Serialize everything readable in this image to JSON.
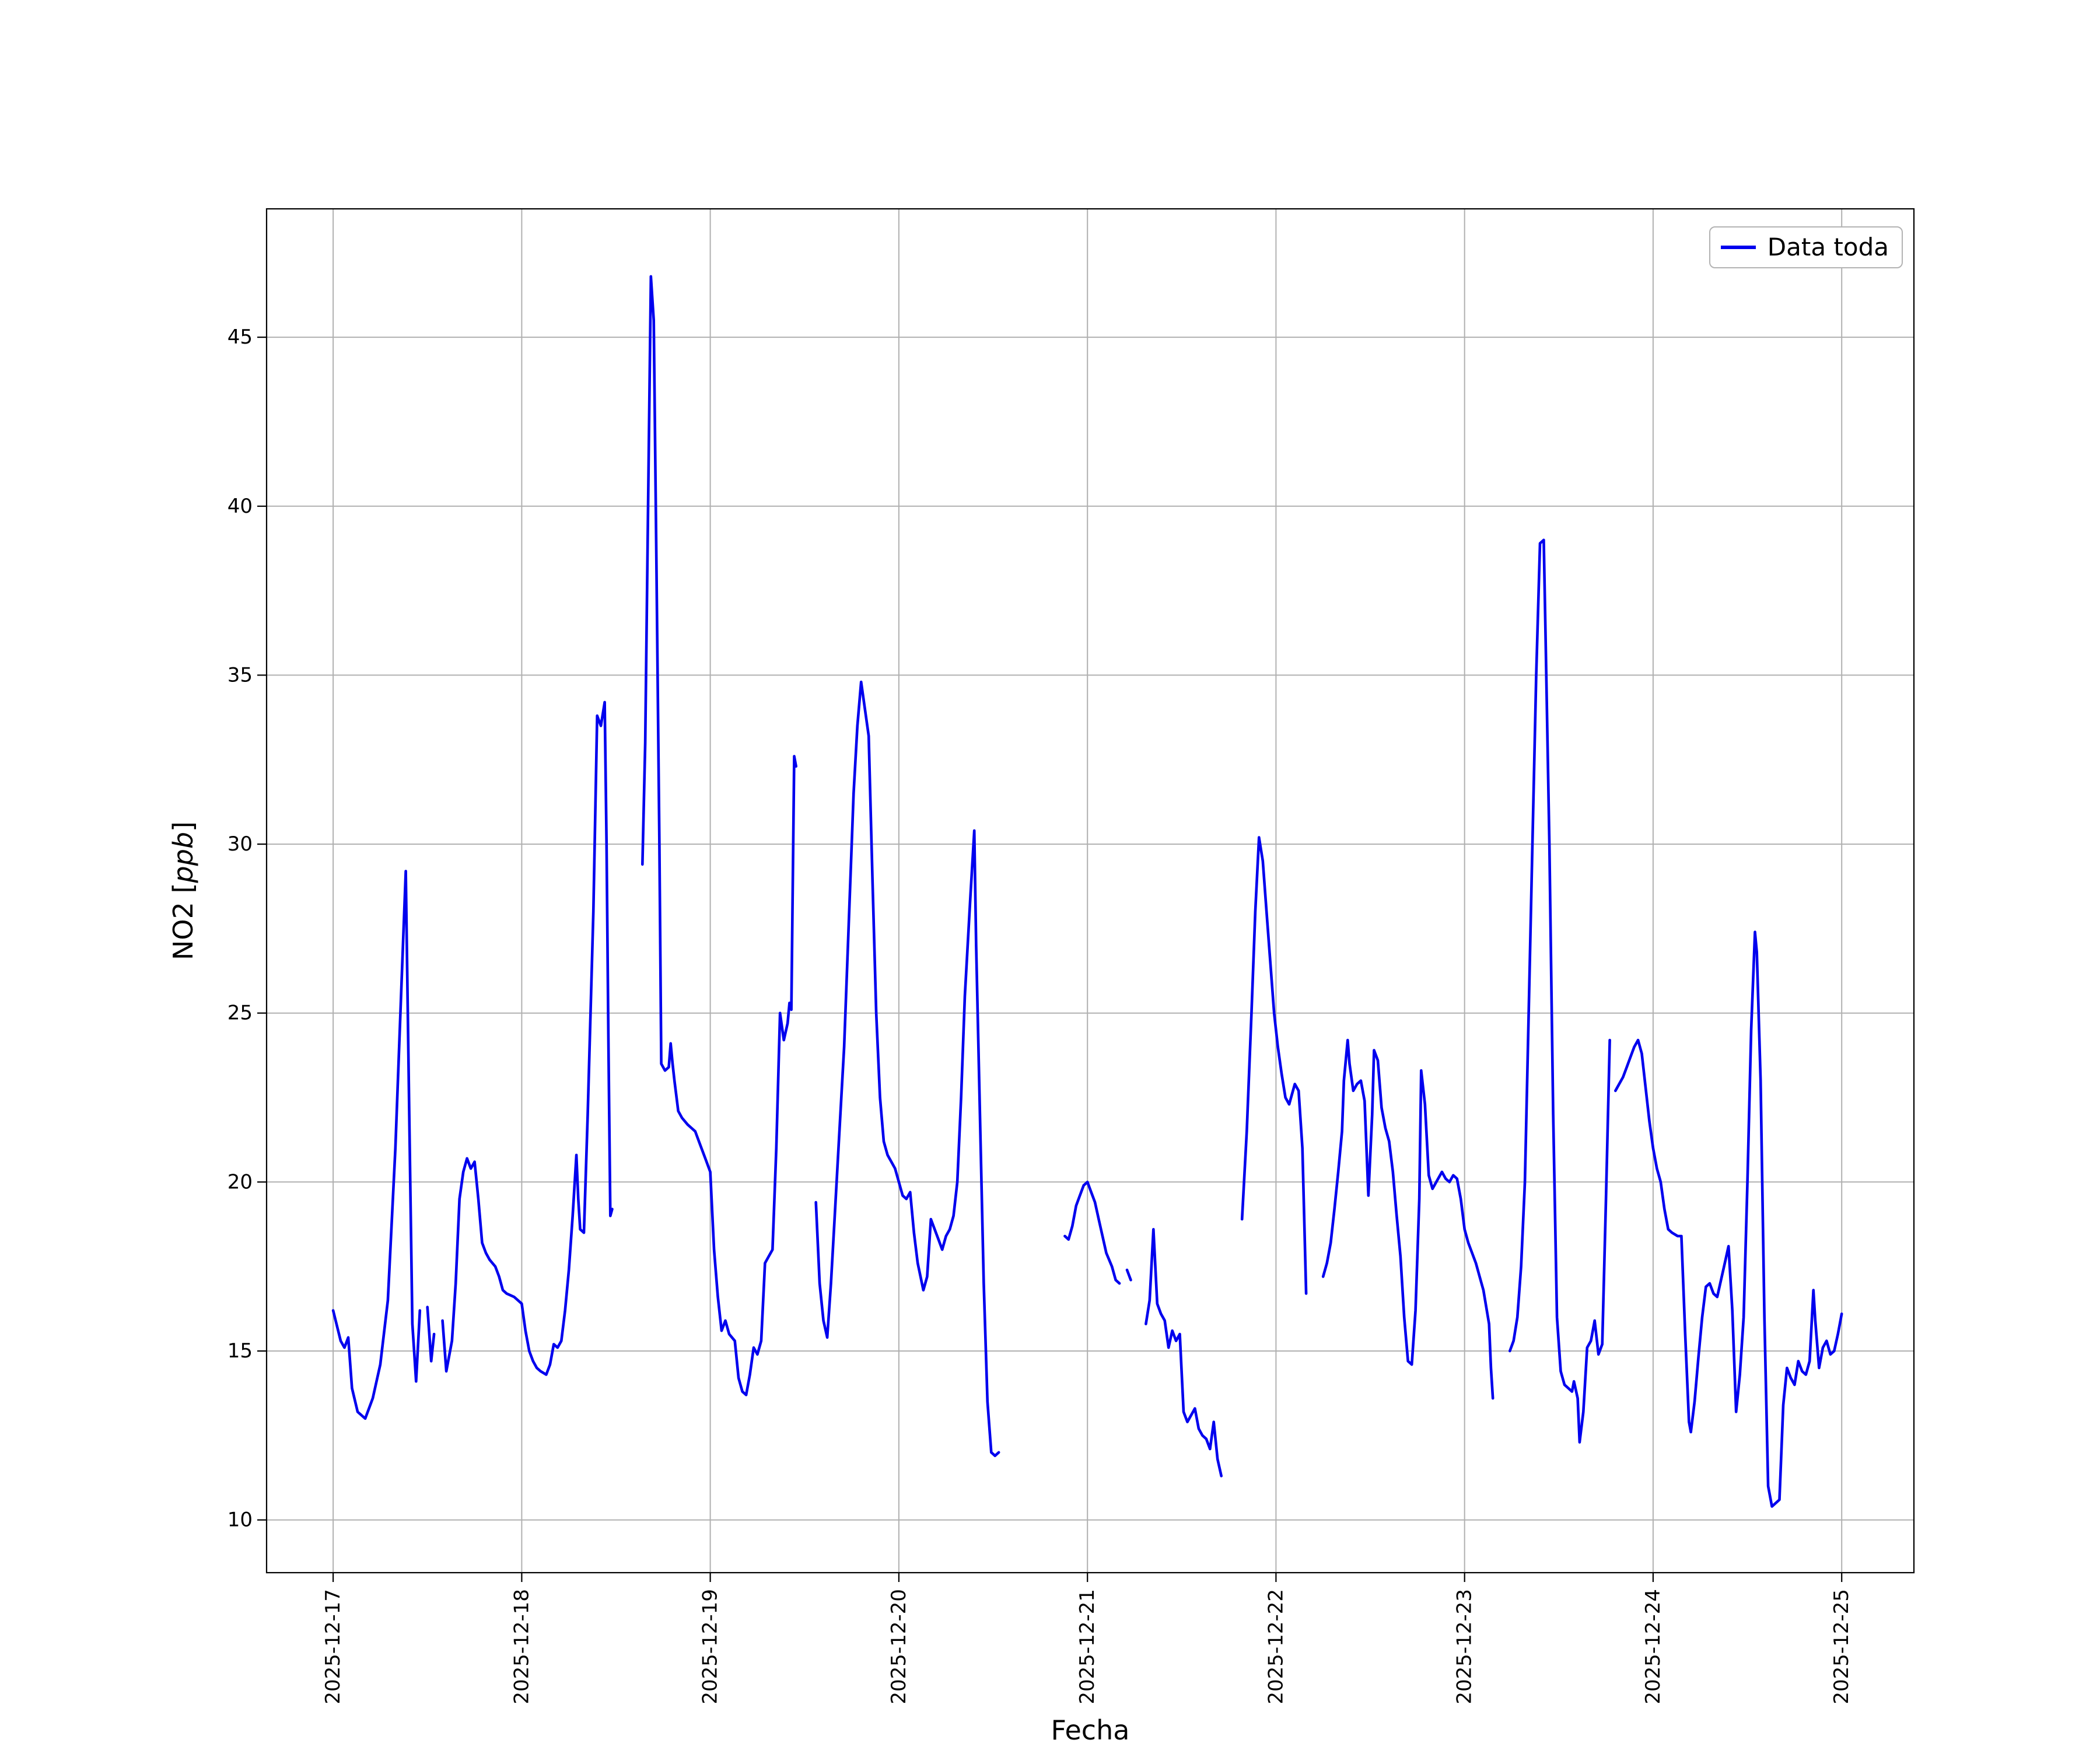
{
  "figure": {
    "background_color": "#ffffff",
    "grid_color": "#b0b0b0",
    "axis_color": "#000000"
  },
  "chart_data": {
    "type": "line",
    "title": "",
    "xlabel": "Fecha",
    "ylabel": "NO2 [ppb]",
    "ylabel_parts": {
      "prefix": "NO2 [",
      "italic": "ppb",
      "suffix": "]"
    },
    "series_name": "Data toda",
    "line_color": "#0000ee",
    "legend_position": "upper right",
    "grid": true,
    "x_unit": "days since 2025-12-17 00:00",
    "xlim_days": [
      -0.353,
      8.383
    ],
    "ylim": [
      8.44,
      48.8
    ],
    "y_ticks": [
      10,
      15,
      20,
      25,
      30,
      35,
      40,
      45
    ],
    "x_ticks": [
      {
        "value": 0,
        "label": "2025-12-17"
      },
      {
        "value": 1,
        "label": "2025-12-18"
      },
      {
        "value": 2,
        "label": "2025-12-19"
      },
      {
        "value": 3,
        "label": "2025-12-20"
      },
      {
        "value": 4,
        "label": "2025-12-21"
      },
      {
        "value": 5,
        "label": "2025-12-22"
      },
      {
        "value": 6,
        "label": "2025-12-23"
      },
      {
        "value": 7,
        "label": "2025-12-24"
      },
      {
        "value": 8,
        "label": "2025-12-25"
      }
    ],
    "segments": [
      [
        [
          0,
          16.2
        ],
        [
          0.04,
          15.3
        ],
        [
          0.06,
          15.1
        ],
        [
          0.08,
          15.4
        ],
        [
          0.1,
          13.9
        ],
        [
          0.13,
          13.2
        ],
        [
          0.17,
          13.0
        ],
        [
          0.21,
          13.6
        ],
        [
          0.25,
          14.6
        ],
        [
          0.29,
          16.5
        ],
        [
          0.33,
          21.0
        ],
        [
          0.36,
          25.5
        ],
        [
          0.385,
          29.2
        ],
        [
          0.405,
          21.5
        ],
        [
          0.42,
          15.8
        ],
        [
          0.44,
          14.1
        ],
        [
          0.46,
          16.2
        ]
      ],
      [
        [
          0.5,
          16.3
        ],
        [
          0.52,
          14.7
        ],
        [
          0.535,
          15.5
        ]
      ],
      [
        [
          0.58,
          15.9
        ],
        [
          0.6,
          14.4
        ],
        [
          0.63,
          15.3
        ],
        [
          0.65,
          17.0
        ],
        [
          0.67,
          19.5
        ],
        [
          0.69,
          20.3
        ],
        [
          0.71,
          20.7
        ],
        [
          0.73,
          20.4
        ],
        [
          0.75,
          20.6
        ],
        [
          0.77,
          19.5
        ],
        [
          0.79,
          18.2
        ],
        [
          0.81,
          17.9
        ],
        [
          0.83,
          17.7
        ],
        [
          0.86,
          17.5
        ],
        [
          0.88,
          17.2
        ],
        [
          0.9,
          16.8
        ],
        [
          0.92,
          16.7
        ],
        [
          0.96,
          16.6
        ],
        [
          1.0,
          16.4
        ],
        [
          1.02,
          15.6
        ],
        [
          1.04,
          15.0
        ],
        [
          1.06,
          14.7
        ],
        [
          1.08,
          14.5
        ],
        [
          1.1,
          14.4
        ],
        [
          1.13,
          14.3
        ],
        [
          1.15,
          14.6
        ],
        [
          1.17,
          15.2
        ],
        [
          1.19,
          15.1
        ],
        [
          1.21,
          15.3
        ],
        [
          1.23,
          16.2
        ],
        [
          1.25,
          17.4
        ],
        [
          1.27,
          19.0
        ],
        [
          1.29,
          20.8
        ],
        [
          1.3,
          19.5
        ],
        [
          1.31,
          18.6
        ],
        [
          1.33,
          18.5
        ],
        [
          1.35,
          22.0
        ],
        [
          1.38,
          28.0
        ],
        [
          1.4,
          33.8
        ],
        [
          1.42,
          33.5
        ],
        [
          1.44,
          34.2
        ],
        [
          1.45,
          30.0
        ],
        [
          1.46,
          24.0
        ],
        [
          1.47,
          19.0
        ],
        [
          1.48,
          19.2
        ]
      ],
      [
        [
          1.64,
          29.4
        ],
        [
          1.655,
          33.0
        ],
        [
          1.67,
          40.0
        ],
        [
          1.685,
          46.8
        ],
        [
          1.7,
          45.5
        ],
        [
          1.715,
          38.0
        ],
        [
          1.73,
          30.0
        ],
        [
          1.74,
          23.5
        ],
        [
          1.76,
          23.3
        ],
        [
          1.78,
          23.4
        ],
        [
          1.79,
          24.1
        ],
        [
          1.8,
          23.5
        ],
        [
          1.81,
          23.0
        ],
        [
          1.83,
          22.1
        ],
        [
          1.85,
          21.9
        ],
        [
          1.88,
          21.7
        ],
        [
          1.9,
          21.6
        ],
        [
          1.92,
          21.5
        ],
        [
          1.94,
          21.2
        ],
        [
          1.96,
          20.9
        ],
        [
          1.98,
          20.6
        ],
        [
          2.0,
          20.3
        ],
        [
          2.02,
          18.0
        ],
        [
          2.04,
          16.6
        ],
        [
          2.06,
          15.6
        ],
        [
          2.08,
          15.9
        ],
        [
          2.1,
          15.5
        ],
        [
          2.13,
          15.3
        ],
        [
          2.15,
          14.2
        ],
        [
          2.17,
          13.8
        ],
        [
          2.19,
          13.7
        ],
        [
          2.21,
          14.3
        ],
        [
          2.23,
          15.1
        ],
        [
          2.25,
          14.9
        ],
        [
          2.27,
          15.3
        ],
        [
          2.29,
          17.6
        ],
        [
          2.31,
          17.8
        ],
        [
          2.33,
          18.0
        ],
        [
          2.35,
          21.0
        ],
        [
          2.37,
          25.0
        ],
        [
          2.39,
          24.2
        ],
        [
          2.41,
          24.7
        ],
        [
          2.42,
          25.3
        ],
        [
          2.43,
          25.1
        ],
        [
          2.445,
          32.6
        ],
        [
          2.455,
          32.3
        ]
      ],
      [
        [
          2.56,
          19.4
        ],
        [
          2.58,
          17.0
        ],
        [
          2.6,
          15.9
        ],
        [
          2.62,
          15.4
        ],
        [
          2.64,
          17.0
        ],
        [
          2.66,
          19.0
        ],
        [
          2.68,
          21.0
        ],
        [
          2.71,
          24.0
        ],
        [
          2.73,
          27.0
        ],
        [
          2.76,
          31.5
        ],
        [
          2.78,
          33.5
        ],
        [
          2.8,
          34.8
        ],
        [
          2.82,
          34.0
        ],
        [
          2.84,
          33.2
        ],
        [
          2.86,
          29.0
        ],
        [
          2.88,
          25.0
        ],
        [
          2.9,
          22.5
        ],
        [
          2.92,
          21.2
        ],
        [
          2.94,
          20.8
        ],
        [
          2.96,
          20.6
        ],
        [
          2.98,
          20.4
        ],
        [
          3.0,
          20.0
        ],
        [
          3.02,
          19.6
        ],
        [
          3.04,
          19.5
        ],
        [
          3.06,
          19.7
        ],
        [
          3.08,
          18.5
        ],
        [
          3.1,
          17.6
        ],
        [
          3.13,
          16.8
        ],
        [
          3.15,
          17.2
        ],
        [
          3.17,
          18.9
        ],
        [
          3.19,
          18.6
        ],
        [
          3.21,
          18.3
        ],
        [
          3.23,
          18.0
        ],
        [
          3.25,
          18.4
        ],
        [
          3.27,
          18.6
        ],
        [
          3.29,
          19.0
        ],
        [
          3.31,
          20.0
        ],
        [
          3.33,
          22.5
        ],
        [
          3.35,
          25.5
        ],
        [
          3.38,
          28.5
        ],
        [
          3.4,
          30.4
        ],
        [
          3.41,
          27.0
        ],
        [
          3.43,
          22.0
        ],
        [
          3.45,
          17.0
        ],
        [
          3.47,
          13.5
        ],
        [
          3.49,
          12.0
        ],
        [
          3.51,
          11.9
        ],
        [
          3.53,
          12.0
        ]
      ],
      [
        [
          3.88,
          18.4
        ],
        [
          3.9,
          18.3
        ],
        [
          3.92,
          18.7
        ],
        [
          3.94,
          19.3
        ],
        [
          3.96,
          19.6
        ],
        [
          3.98,
          19.9
        ],
        [
          4.0,
          20.0
        ],
        [
          4.02,
          19.7
        ],
        [
          4.04,
          19.4
        ],
        [
          4.06,
          18.9
        ],
        [
          4.08,
          18.4
        ],
        [
          4.1,
          17.9
        ],
        [
          4.13,
          17.5
        ],
        [
          4.15,
          17.1
        ],
        [
          4.17,
          17.0
        ]
      ],
      [
        [
          4.21,
          17.4
        ],
        [
          4.23,
          17.1
        ]
      ],
      [
        [
          4.31,
          15.8
        ],
        [
          4.33,
          16.5
        ],
        [
          4.35,
          18.6
        ],
        [
          4.37,
          16.4
        ],
        [
          4.39,
          16.1
        ],
        [
          4.41,
          15.9
        ],
        [
          4.43,
          15.1
        ],
        [
          4.45,
          15.6
        ],
        [
          4.47,
          15.3
        ],
        [
          4.49,
          15.5
        ],
        [
          4.51,
          13.2
        ],
        [
          4.53,
          12.9
        ],
        [
          4.55,
          13.1
        ],
        [
          4.57,
          13.3
        ],
        [
          4.59,
          12.7
        ],
        [
          4.61,
          12.5
        ],
        [
          4.63,
          12.4
        ],
        [
          4.65,
          12.1
        ],
        [
          4.67,
          12.9
        ],
        [
          4.69,
          11.8
        ],
        [
          4.71,
          11.3
        ]
      ],
      [
        [
          4.82,
          18.9
        ],
        [
          4.845,
          21.5
        ],
        [
          4.87,
          25.0
        ],
        [
          4.89,
          28.0
        ],
        [
          4.91,
          30.2
        ],
        [
          4.93,
          29.5
        ],
        [
          4.95,
          28.0
        ],
        [
          4.97,
          26.5
        ],
        [
          4.99,
          25.0
        ],
        [
          5.01,
          24.0
        ],
        [
          5.03,
          23.2
        ],
        [
          5.05,
          22.5
        ],
        [
          5.07,
          22.3
        ],
        [
          5.1,
          22.9
        ],
        [
          5.12,
          22.7
        ],
        [
          5.14,
          21.0
        ],
        [
          5.16,
          16.7
        ]
      ],
      [
        [
          5.25,
          17.2
        ],
        [
          5.27,
          17.6
        ],
        [
          5.29,
          18.2
        ],
        [
          5.31,
          19.2
        ],
        [
          5.33,
          20.3
        ],
        [
          5.35,
          21.5
        ],
        [
          5.36,
          23.0
        ],
        [
          5.38,
          24.2
        ],
        [
          5.39,
          23.5
        ],
        [
          5.41,
          22.7
        ],
        [
          5.43,
          22.9
        ],
        [
          5.45,
          23.0
        ],
        [
          5.47,
          22.4
        ],
        [
          5.49,
          19.6
        ],
        [
          5.51,
          22.0
        ],
        [
          5.52,
          23.9
        ],
        [
          5.54,
          23.6
        ],
        [
          5.56,
          22.2
        ],
        [
          5.58,
          21.6
        ],
        [
          5.6,
          21.2
        ],
        [
          5.62,
          20.3
        ],
        [
          5.64,
          19.0
        ],
        [
          5.66,
          17.8
        ],
        [
          5.68,
          16.0
        ],
        [
          5.7,
          14.7
        ],
        [
          5.72,
          14.6
        ],
        [
          5.74,
          16.2
        ],
        [
          5.76,
          19.5
        ],
        [
          5.77,
          23.3
        ],
        [
          5.79,
          22.3
        ],
        [
          5.81,
          20.2
        ],
        [
          5.83,
          19.8
        ],
        [
          5.85,
          20.0
        ],
        [
          5.88,
          20.3
        ],
        [
          5.9,
          20.1
        ],
        [
          5.92,
          20.0
        ],
        [
          5.94,
          20.2
        ],
        [
          5.96,
          20.1
        ],
        [
          5.98,
          19.5
        ],
        [
          6.0,
          18.6
        ],
        [
          6.02,
          18.2
        ],
        [
          6.04,
          17.9
        ],
        [
          6.06,
          17.6
        ],
        [
          6.08,
          17.2
        ],
        [
          6.1,
          16.8
        ],
        [
          6.13,
          15.8
        ],
        [
          6.14,
          14.5
        ],
        [
          6.15,
          13.6
        ]
      ],
      [
        [
          6.24,
          15.0
        ],
        [
          6.26,
          15.3
        ],
        [
          6.28,
          16.0
        ],
        [
          6.3,
          17.5
        ],
        [
          6.32,
          20.0
        ],
        [
          6.34,
          25.0
        ],
        [
          6.36,
          30.0
        ],
        [
          6.38,
          35.0
        ],
        [
          6.4,
          38.9
        ],
        [
          6.42,
          39.0
        ],
        [
          6.43,
          36.0
        ],
        [
          6.45,
          30.0
        ],
        [
          6.47,
          22.0
        ],
        [
          6.49,
          16.0
        ],
        [
          6.51,
          14.4
        ],
        [
          6.53,
          14.0
        ],
        [
          6.55,
          13.9
        ],
        [
          6.57,
          13.8
        ],
        [
          6.58,
          14.1
        ],
        [
          6.6,
          13.6
        ],
        [
          6.61,
          12.3
        ],
        [
          6.63,
          13.2
        ],
        [
          6.65,
          15.1
        ],
        [
          6.67,
          15.3
        ],
        [
          6.69,
          15.9
        ],
        [
          6.71,
          14.9
        ],
        [
          6.73,
          15.2
        ],
        [
          6.75,
          19.5
        ],
        [
          6.77,
          24.2
        ]
      ],
      [
        [
          6.8,
          22.7
        ],
        [
          6.82,
          22.9
        ],
        [
          6.84,
          23.1
        ],
        [
          6.86,
          23.4
        ],
        [
          6.88,
          23.7
        ],
        [
          6.9,
          24.0
        ],
        [
          6.92,
          24.2
        ],
        [
          6.94,
          23.8
        ],
        [
          6.96,
          22.8
        ],
        [
          6.98,
          21.8
        ],
        [
          7.0,
          21.0
        ],
        [
          7.02,
          20.4
        ],
        [
          7.04,
          20.0
        ],
        [
          7.06,
          19.2
        ],
        [
          7.08,
          18.6
        ],
        [
          7.1,
          18.5
        ],
        [
          7.13,
          18.4
        ],
        [
          7.15,
          18.4
        ],
        [
          7.17,
          15.5
        ],
        [
          7.19,
          12.9
        ],
        [
          7.2,
          12.6
        ],
        [
          7.22,
          13.5
        ],
        [
          7.24,
          14.8
        ],
        [
          7.26,
          16.0
        ],
        [
          7.28,
          16.9
        ],
        [
          7.3,
          17.0
        ],
        [
          7.32,
          16.7
        ],
        [
          7.34,
          16.6
        ],
        [
          7.36,
          17.1
        ],
        [
          7.38,
          17.6
        ],
        [
          7.4,
          18.1
        ],
        [
          7.42,
          16.2
        ],
        [
          7.44,
          13.2
        ],
        [
          7.46,
          14.3
        ],
        [
          7.48,
          16.0
        ],
        [
          7.5,
          20.0
        ],
        [
          7.52,
          24.5
        ],
        [
          7.54,
          27.4
        ],
        [
          7.55,
          26.8
        ],
        [
          7.57,
          23.0
        ],
        [
          7.59,
          16.0
        ],
        [
          7.61,
          11.0
        ],
        [
          7.63,
          10.4
        ],
        [
          7.65,
          10.5
        ],
        [
          7.67,
          10.6
        ],
        [
          7.69,
          13.4
        ],
        [
          7.71,
          14.5
        ],
        [
          7.73,
          14.2
        ],
        [
          7.75,
          14.0
        ],
        [
          7.77,
          14.7
        ],
        [
          7.79,
          14.4
        ],
        [
          7.81,
          14.3
        ],
        [
          7.83,
          14.7
        ],
        [
          7.85,
          16.8
        ],
        [
          7.86,
          15.9
        ],
        [
          7.88,
          14.5
        ],
        [
          7.9,
          15.1
        ],
        [
          7.92,
          15.3
        ],
        [
          7.94,
          14.9
        ],
        [
          7.96,
          15.0
        ],
        [
          7.98,
          15.5
        ],
        [
          8.0,
          16.1
        ]
      ]
    ]
  }
}
